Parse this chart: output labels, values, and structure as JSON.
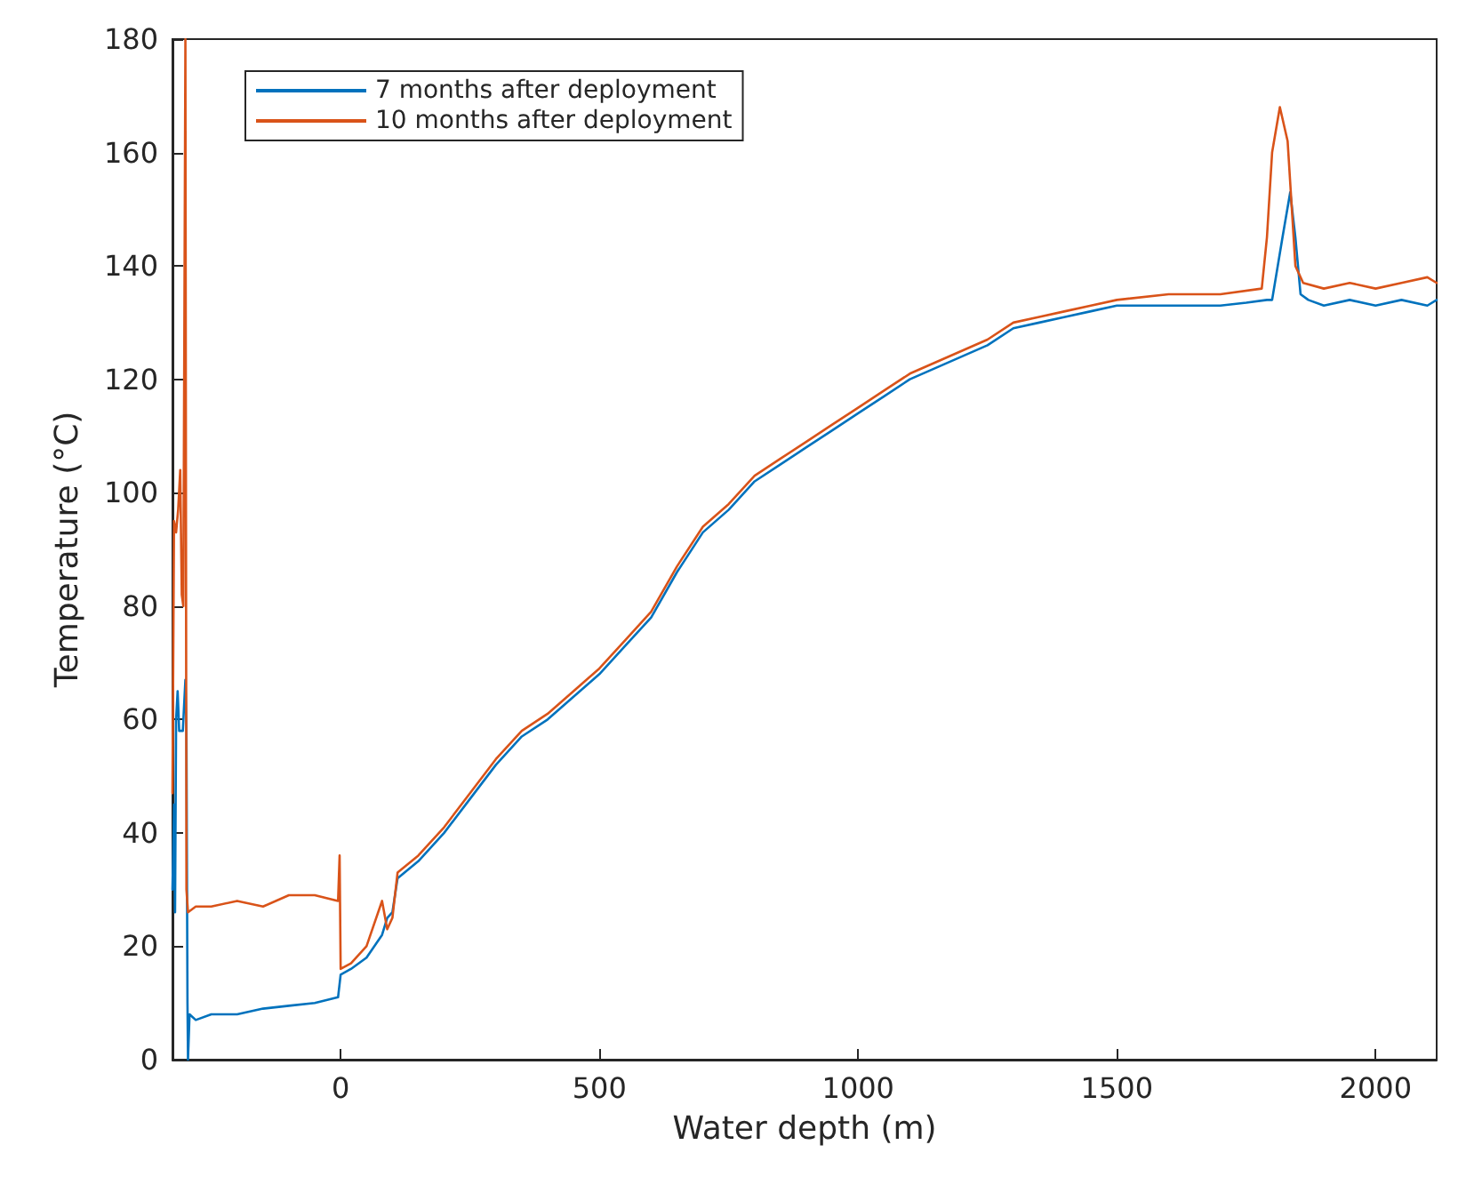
{
  "chart_data": {
    "type": "line",
    "xlabel": "Water depth (m)",
    "ylabel": "Temperature (°C)",
    "xlim": [
      -325,
      2118
    ],
    "ylim": [
      0,
      180
    ],
    "xticks": [
      0,
      500,
      1000,
      1500,
      2000
    ],
    "yticks": [
      0,
      20,
      40,
      60,
      80,
      100,
      120,
      140,
      160,
      180
    ],
    "grid": false,
    "legend": "top left",
    "marker": "none",
    "line_style": "solid",
    "series": [
      {
        "name": "7 months after deployment",
        "color": "#0072bd",
        "x": [
          -325,
          -322,
          -320,
          -318,
          -315,
          -312,
          -305,
          -300,
          -298,
          -296,
          -295,
          -292,
          -280,
          -250,
          -200,
          -150,
          -100,
          -50,
          -5,
          0,
          20,
          50,
          80,
          90,
          100,
          110,
          150,
          200,
          250,
          300,
          350,
          400,
          450,
          500,
          550,
          600,
          650,
          700,
          750,
          800,
          850,
          900,
          950,
          1000,
          1050,
          1100,
          1150,
          1200,
          1250,
          1300,
          1350,
          1400,
          1450,
          1500,
          1550,
          1600,
          1650,
          1700,
          1750,
          1790,
          1800,
          1820,
          1835,
          1845,
          1855,
          1870,
          1900,
          1950,
          2000,
          2050,
          2100,
          2118
        ],
        "values": [
          30,
          45,
          26,
          60,
          65,
          58,
          58,
          67,
          58,
          10,
          0,
          8,
          7,
          8,
          8,
          9,
          9.5,
          10,
          11,
          15,
          16,
          18,
          22,
          25,
          26,
          32,
          35,
          40,
          46,
          52,
          57,
          60,
          64,
          68,
          73,
          78,
          86,
          93,
          97,
          102,
          105,
          108,
          111,
          114,
          117,
          120,
          122,
          124,
          126,
          129,
          130,
          131,
          132,
          133,
          133,
          133,
          133,
          133,
          133.5,
          134,
          134,
          145,
          153,
          145,
          135,
          134,
          133,
          134,
          133,
          134,
          133,
          134
        ]
      },
      {
        "name": "10 months after deployment",
        "color": "#d95319",
        "x": [
          -325,
          -322,
          -318,
          -314,
          -310,
          -307,
          -304,
          -300,
          -298,
          -295,
          -280,
          -250,
          -200,
          -150,
          -100,
          -50,
          -5,
          -2,
          0,
          20,
          50,
          80,
          90,
          100,
          110,
          150,
          200,
          250,
          300,
          350,
          400,
          450,
          500,
          550,
          600,
          650,
          700,
          750,
          800,
          850,
          900,
          950,
          1000,
          1050,
          1100,
          1150,
          1200,
          1250,
          1300,
          1350,
          1400,
          1450,
          1500,
          1600,
          1700,
          1780,
          1790,
          1800,
          1815,
          1830,
          1845,
          1860,
          1900,
          1950,
          2000,
          2050,
          2100,
          2118
        ],
        "values": [
          47,
          95,
          93,
          97,
          104,
          82,
          80,
          180,
          30,
          26,
          27,
          27,
          28,
          27,
          29,
          29,
          28,
          36,
          16,
          17,
          20,
          28,
          23,
          25,
          33,
          36,
          41,
          47,
          53,
          58,
          61,
          65,
          69,
          74,
          79,
          87,
          94,
          98,
          103,
          106,
          109,
          112,
          115,
          118,
          121,
          123,
          125,
          127,
          130,
          131,
          132,
          133,
          134,
          135,
          135,
          136,
          145,
          160,
          168,
          162,
          140,
          137,
          136,
          137,
          136,
          137,
          138,
          137
        ]
      }
    ]
  }
}
